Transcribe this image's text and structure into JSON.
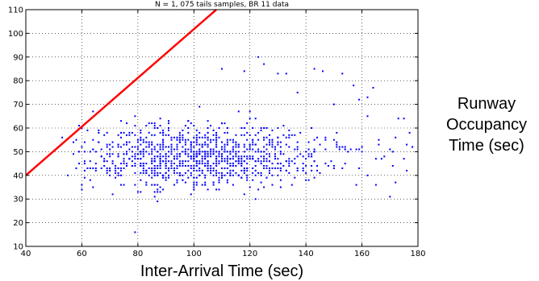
{
  "chart_data": {
    "type": "scatter",
    "title": "N = 1, 075 tails samples, BR 11 data",
    "xlabel": "Inter-Arrival Time (sec)",
    "ylabel": [
      "Runway",
      "Occupancy",
      "Time (sec)"
    ],
    "xlim": [
      40,
      180
    ],
    "ylim": [
      10,
      110
    ],
    "x_ticks": [
      40,
      60,
      80,
      100,
      120,
      140,
      160,
      180
    ],
    "y_ticks": [
      10,
      20,
      30,
      40,
      50,
      60,
      70,
      80,
      90,
      100,
      110
    ],
    "grid": "dotted",
    "colors": {
      "points": "#0000ff",
      "reference_line": "#ff0000",
      "axes": "#000000"
    },
    "reference_line": {
      "x": [
        40,
        108
      ],
      "y": [
        40,
        110
      ]
    },
    "notable_points": [
      {
        "x": 53,
        "y": 56
      },
      {
        "x": 55,
        "y": 40
      },
      {
        "x": 57,
        "y": 54
      },
      {
        "x": 59,
        "y": 61
      },
      {
        "x": 61,
        "y": 42
      },
      {
        "x": 63,
        "y": 50
      },
      {
        "x": 64,
        "y": 67
      },
      {
        "x": 79,
        "y": 16
      },
      {
        "x": 87,
        "y": 29
      },
      {
        "x": 110,
        "y": 85
      },
      {
        "x": 118,
        "y": 84
      },
      {
        "x": 123,
        "y": 90
      },
      {
        "x": 125,
        "y": 87
      },
      {
        "x": 130,
        "y": 83
      },
      {
        "x": 133,
        "y": 83
      },
      {
        "x": 137,
        "y": 75
      },
      {
        "x": 143,
        "y": 85
      },
      {
        "x": 146,
        "y": 84
      },
      {
        "x": 150,
        "y": 70
      },
      {
        "x": 153,
        "y": 83
      },
      {
        "x": 157,
        "y": 78
      },
      {
        "x": 159,
        "y": 72
      },
      {
        "x": 162,
        "y": 73
      },
      {
        "x": 164,
        "y": 77
      },
      {
        "x": 170,
        "y": 31
      },
      {
        "x": 172,
        "y": 37
      },
      {
        "x": 173,
        "y": 64
      },
      {
        "x": 175,
        "y": 64
      },
      {
        "x": 176,
        "y": 42
      },
      {
        "x": 178,
        "y": 52
      },
      {
        "x": 171,
        "y": 44
      },
      {
        "x": 168,
        "y": 48
      },
      {
        "x": 166,
        "y": 55
      },
      {
        "x": 162,
        "y": 40
      },
      {
        "x": 165,
        "y": 36
      },
      {
        "x": 177,
        "y": 58
      }
    ],
    "cluster": {
      "n": 1075,
      "x_range": [
        56,
        178
      ],
      "y_range": [
        30,
        70
      ],
      "x_center": 95,
      "y_center": 48
    }
  }
}
